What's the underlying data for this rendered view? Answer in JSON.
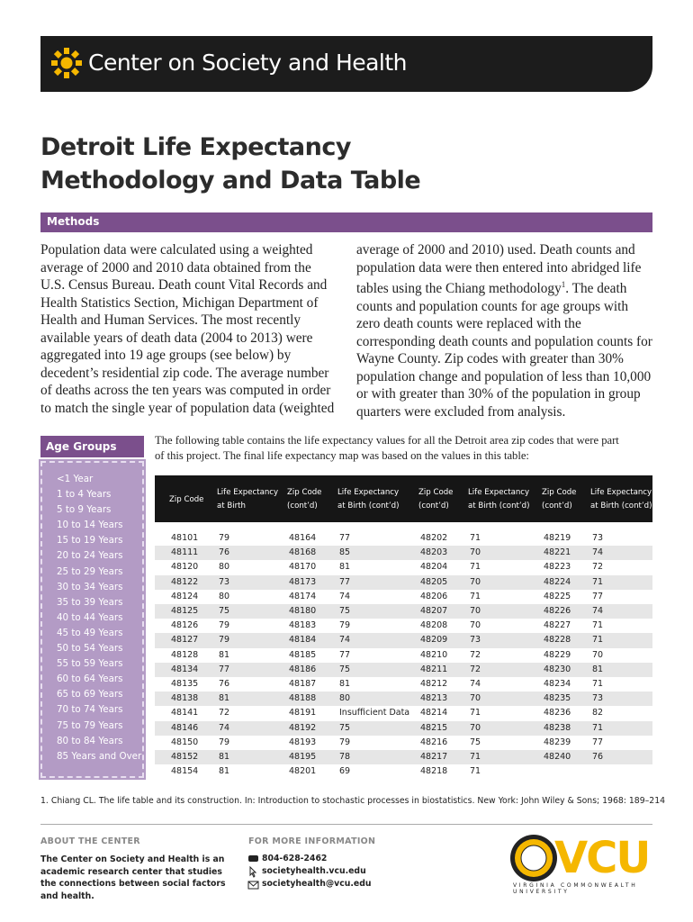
{
  "header": {
    "org": "Center on Society and Health"
  },
  "title": [
    "Detroit Life Expectancy",
    "Methodology and Data Table"
  ],
  "methods": {
    "heading": "Methods",
    "paragraph": [
      "Population data were calculated using a weighted average of 2000 and 2010 data obtained from the U.S. Census Bureau. Death count Vital Records and Health Statistics Section, Michigan Department of Health and Human Services. The most recently available years of death data (2004 to 2013) were aggregated into 19 age groups (see below) by decedent’s residential zip code. The average number of deaths across the ten years was computed in order to match the single year of population data (weighted average of 2000 and 2010) used. Death counts and population data were then entered into abridged life tables using the Chiang methodology",
      "1",
      ". The death counts and population counts for age groups with zero death counts were replaced with the corresponding death counts and population counts for Wayne County. Zip codes with greater than 30% population change and population of less than 10,000 or with greater than 30% of the population in group quarters were excluded from analysis."
    ]
  },
  "age_groups": {
    "heading": "Age Groups",
    "items": [
      "<1 Year",
      "1 to 4 Years",
      "5 to 9 Years",
      "10 to 14 Years",
      "15 to 19 Years",
      "20 to 24 Years",
      "25 to 29 Years",
      "30 to 34 Years",
      "35 to 39 Years",
      "40 to 44 Years",
      "45 to 49 Years",
      "50 to 54 Years",
      "55 to 59 Years",
      "60 to 64 Years",
      "65 to 69 Years",
      "70 to 74 Years",
      "75 to 79 Years",
      "80 to 84 Years",
      "85 Years and Over"
    ]
  },
  "table": {
    "intro": "The following table contains the life expectancy values for all the Detroit area zip codes that were part of this project. The final life expectancy map was based on the values in this table:",
    "headers": [
      [
        "Zip Code"
      ],
      [
        "Life Expectancy",
        "at Birth"
      ],
      [
        "Zip Code",
        "(cont’d)"
      ],
      [
        "Life Expectancy",
        "at Birth (cont’d)"
      ],
      [
        "Zip Code",
        "(cont’d)"
      ],
      [
        "Life Expectancy",
        "at Birth (cont’d)"
      ],
      [
        "Zip Code",
        "(cont’d)"
      ],
      [
        "Life Expectancy",
        "at Birth (cont’d)"
      ]
    ],
    "rows": [
      [
        "48101",
        79,
        "48164",
        77,
        "48202",
        71,
        "48219",
        73
      ],
      [
        "48111",
        76,
        "48168",
        85,
        "48203",
        70,
        "48221",
        74
      ],
      [
        "48120",
        80,
        "48170",
        81,
        "48204",
        71,
        "48223",
        72
      ],
      [
        "48122",
        73,
        "48173",
        77,
        "48205",
        70,
        "48224",
        71
      ],
      [
        "48124",
        80,
        "48174",
        74,
        "48206",
        71,
        "48225",
        77
      ],
      [
        "48125",
        75,
        "48180",
        75,
        "48207",
        70,
        "48226",
        74
      ],
      [
        "48126",
        79,
        "48183",
        79,
        "48208",
        70,
        "48227",
        71
      ],
      [
        "48127",
        79,
        "48184",
        74,
        "48209",
        73,
        "48228",
        71
      ],
      [
        "48128",
        81,
        "48185",
        77,
        "48210",
        72,
        "48229",
        70
      ],
      [
        "48134",
        77,
        "48186",
        75,
        "48211",
        72,
        "48230",
        81
      ],
      [
        "48135",
        76,
        "48187",
        81,
        "48212",
        74,
        "48234",
        71
      ],
      [
        "48138",
        81,
        "48188",
        80,
        "48213",
        70,
        "48235",
        73
      ],
      [
        "48141",
        72,
        "48191",
        "Insufficient Data",
        "48214",
        71,
        "48236",
        82
      ],
      [
        "48146",
        74,
        "48192",
        75,
        "48215",
        70,
        "48238",
        71
      ],
      [
        "48150",
        79,
        "48193",
        79,
        "48216",
        75,
        "48239",
        77
      ],
      [
        "48152",
        81,
        "48195",
        78,
        "48217",
        71,
        "48240",
        76
      ],
      [
        "48154",
        81,
        "48201",
        69,
        "48218",
        71
      ]
    ]
  },
  "footnote": "1. Chiang CL. The life table and its construction. In: Introduction to stochastic processes in biostatistics. New York: John Wiley & Sons; 1968: 189–214",
  "footer": {
    "about": {
      "heading": "ABOUT THE CENTER",
      "text": "The Center on Society and Health is an academic research center that studies the connections between social factors and health."
    },
    "more": {
      "heading": "FOR MORE INFORMATION",
      "items": [
        "804-628-2462",
        "societyhealth.vcu.edu",
        "societyhealth@vcu.edu"
      ]
    },
    "logo": {
      "mark": "VCU",
      "tagline": "VIRGINIA COMMONWEALTH UNIVERSITY"
    }
  }
}
